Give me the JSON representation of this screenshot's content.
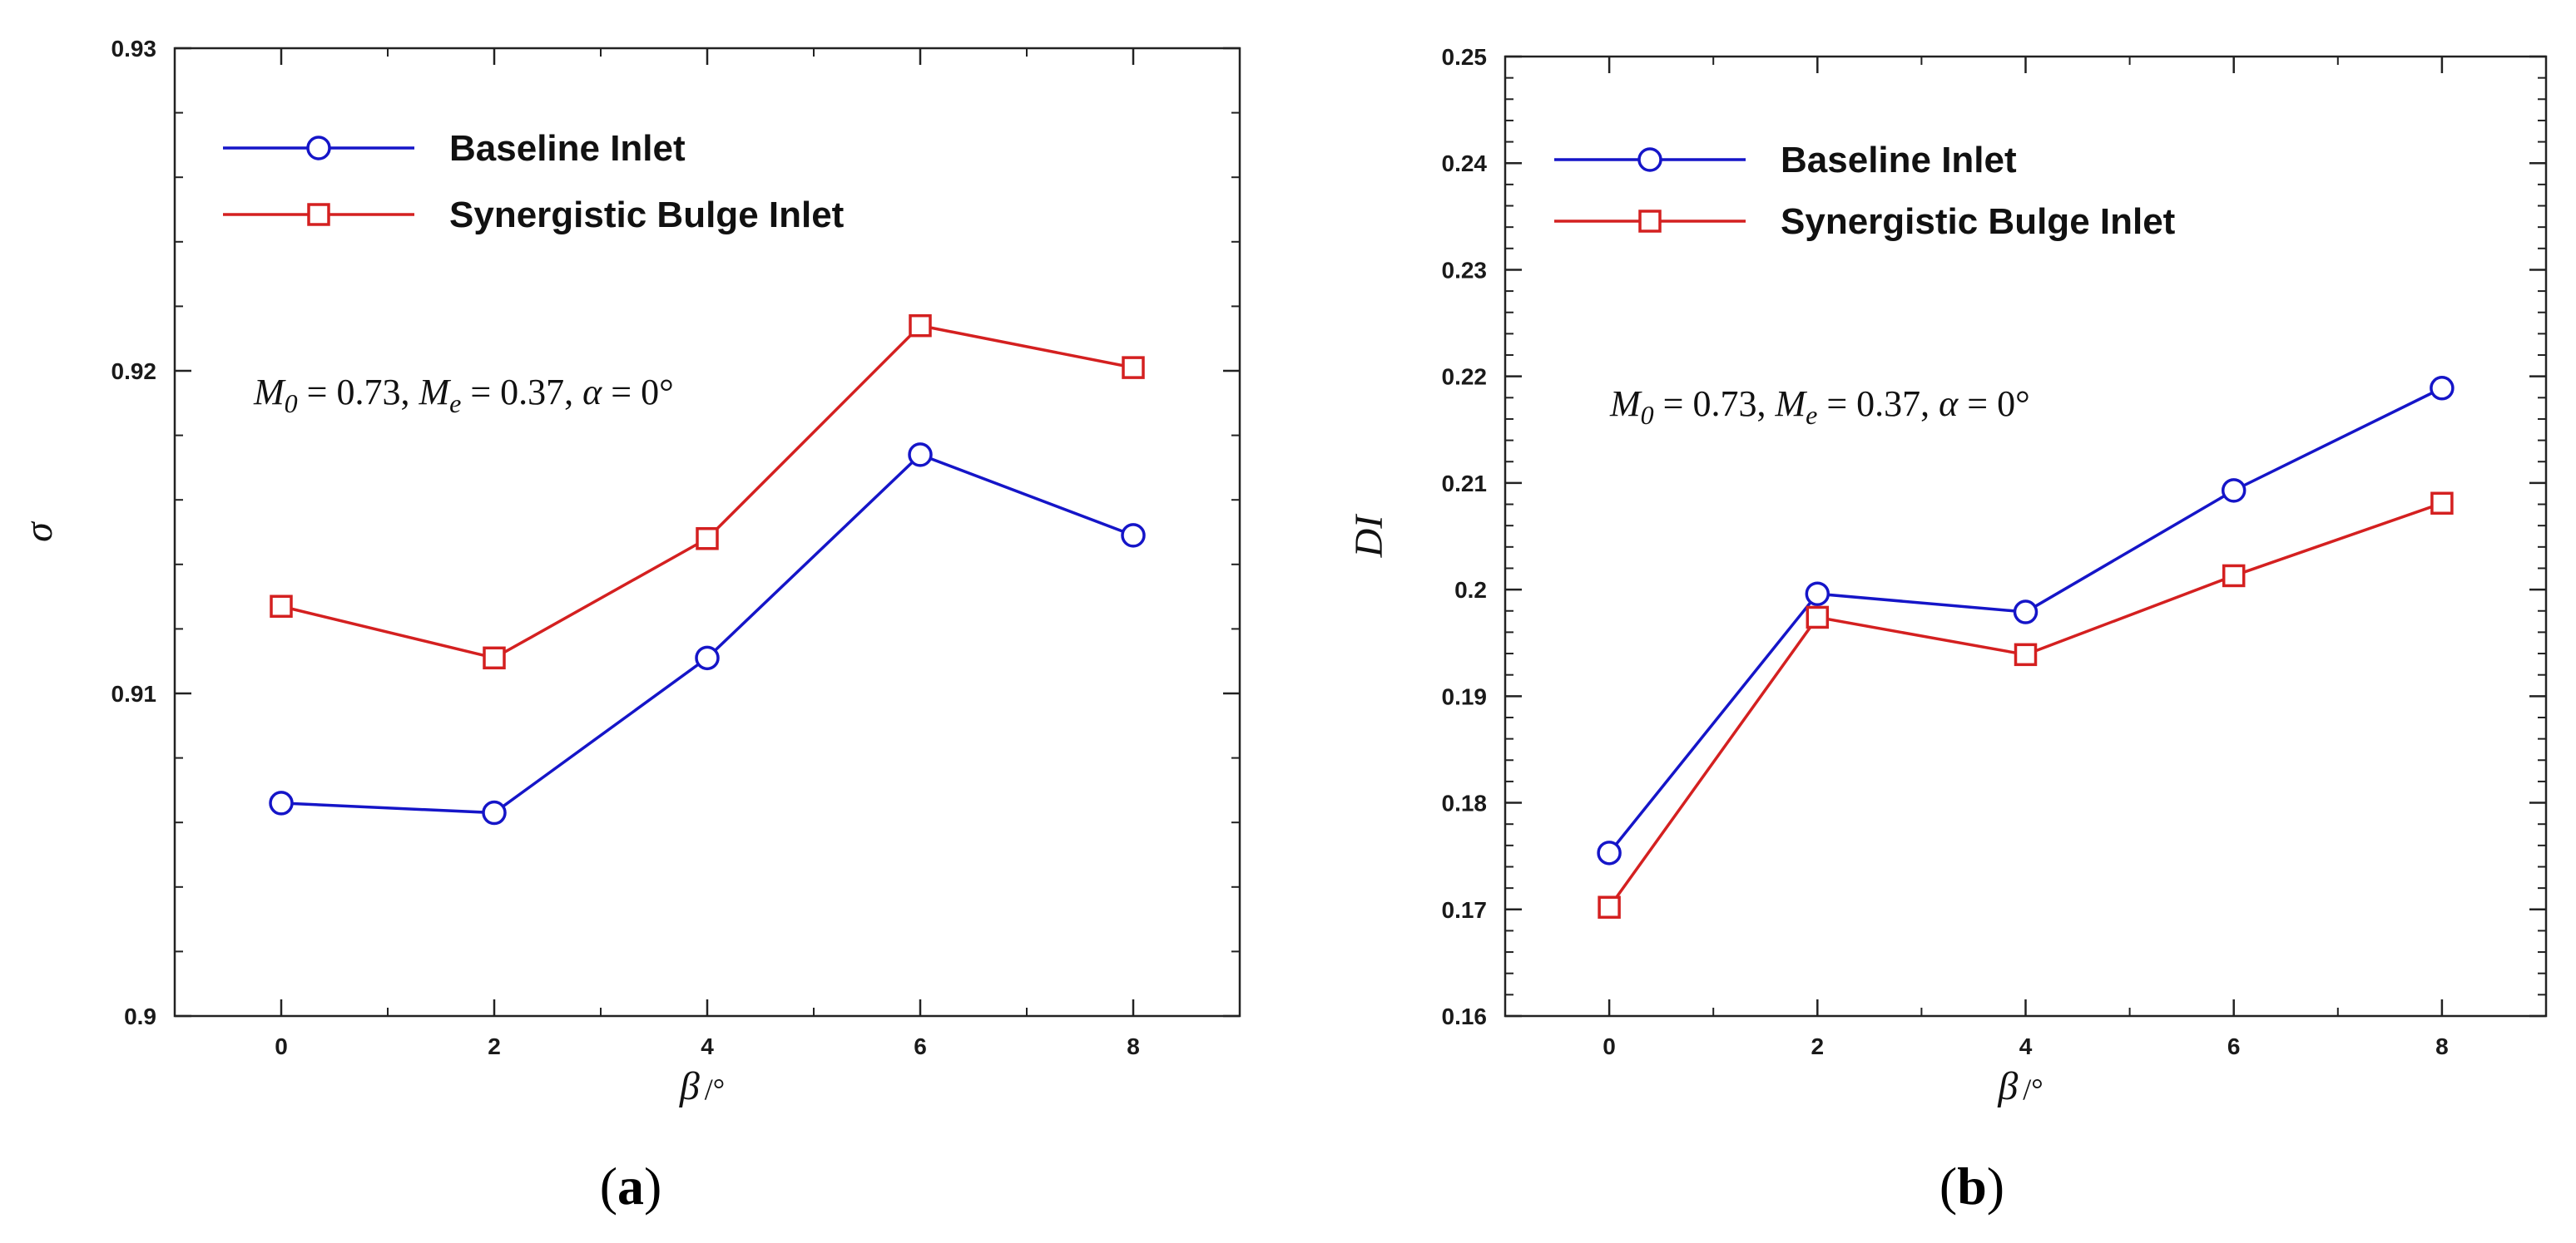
{
  "chart_data": [
    {
      "type": "line",
      "panel_label": "(a)",
      "panel_letter": "a",
      "title": "",
      "xlabel": "β",
      "xlabel_unit": "/°",
      "ylabel": "σ",
      "categories": [
        "0",
        "2",
        "4",
        "6",
        "8"
      ],
      "x": [
        0,
        2,
        4,
        6,
        8
      ],
      "xlim": [
        -1,
        9
      ],
      "ylim": [
        0.9,
        0.93
      ],
      "yticks": [
        0.9,
        0.91,
        0.92,
        0.93
      ],
      "ytick_labels": [
        "0.9",
        "0.91",
        "0.92",
        "0.93"
      ],
      "grid": false,
      "legend_position": "top-left",
      "annotation": {
        "M_sym": "M",
        "M_sub0": "0",
        "eq1": " = 0.73, ",
        "Me_sym": "M",
        "Me_sub": "e",
        "eq2": " = 0.37, ",
        "alpha_sym": "α",
        "eq3": " = 0°"
      },
      "series": [
        {
          "name": "Baseline Inlet",
          "marker": "circle",
          "color": "#1515c8",
          "values": [
            0.9066,
            0.9063,
            0.9111,
            0.9174,
            0.9149
          ]
        },
        {
          "name": "Synergistic Bulge Inlet",
          "marker": "square",
          "color": "#d42020",
          "values": [
            0.9127,
            0.9111,
            0.9148,
            0.9214,
            0.9201
          ]
        }
      ]
    },
    {
      "type": "line",
      "panel_label": "(b)",
      "panel_letter": "b",
      "title": "",
      "xlabel": "β",
      "xlabel_unit": "/°",
      "ylabel": "DI",
      "categories": [
        "0",
        "2",
        "4",
        "6",
        "8"
      ],
      "x": [
        0,
        2,
        4,
        6,
        8
      ],
      "xlim": [
        -1,
        9
      ],
      "ylim": [
        0.16,
        0.25
      ],
      "yticks": [
        0.16,
        0.17,
        0.18,
        0.19,
        0.2,
        0.21,
        0.22,
        0.23,
        0.24,
        0.25
      ],
      "ytick_labels": [
        "0.16",
        "0.17",
        "0.18",
        "0.19",
        "0.2",
        "0.21",
        "0.22",
        "0.23",
        "0.24",
        "0.25"
      ],
      "grid": false,
      "legend_position": "top-left",
      "annotation": {
        "M_sym": "M",
        "M_sub0": "0",
        "eq1": " = 0.73, ",
        "Me_sym": "M",
        "Me_sub": "e",
        "eq2": " = 0.37, ",
        "alpha_sym": "α",
        "eq3": " = 0°"
      },
      "series": [
        {
          "name": "Baseline Inlet",
          "marker": "circle",
          "color": "#1515c8",
          "values": [
            0.1753,
            0.1996,
            0.1979,
            0.2093,
            0.2189
          ]
        },
        {
          "name": "Synergistic Bulge Inlet",
          "marker": "square",
          "color": "#d42020",
          "values": [
            0.1702,
            0.1974,
            0.1939,
            0.2013,
            0.2081
          ]
        }
      ]
    }
  ]
}
